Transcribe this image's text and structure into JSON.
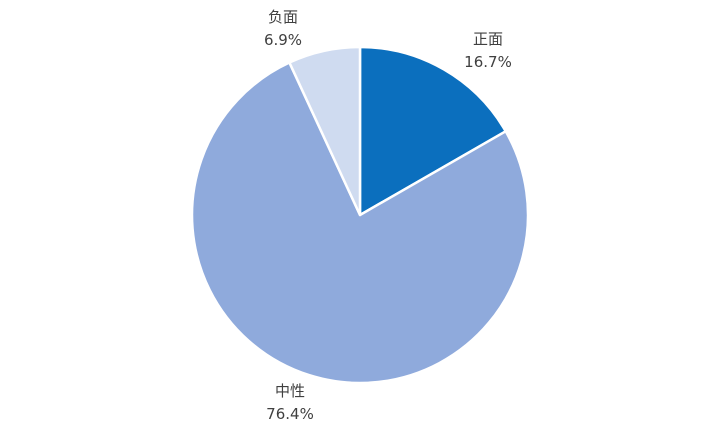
{
  "chart_data": {
    "type": "pie",
    "title": "",
    "categories": [
      "正面",
      "中性",
      "负面"
    ],
    "values": [
      16.7,
      76.4,
      6.9
    ],
    "value_labels": [
      "16.7%",
      "76.4%",
      "6.9%"
    ],
    "colors": [
      "#0B6FBE",
      "#8FAADC",
      "#CFDBF0"
    ],
    "slice_names": [
      "positive",
      "neutral",
      "negative"
    ],
    "start_angle_deg": 0,
    "direction": "clockwise",
    "slice_border_color": "#FFFFFF",
    "label_color": "#404040",
    "label_position": "outside",
    "legend": "none",
    "background": "#FFFFFF"
  }
}
